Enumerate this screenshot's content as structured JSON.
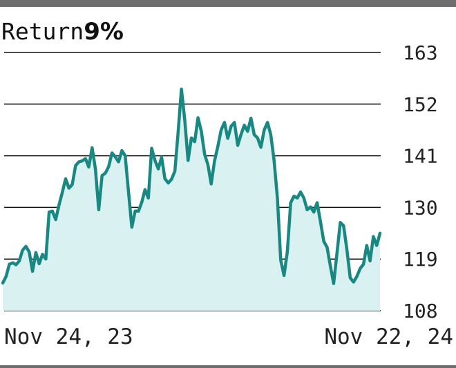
{
  "header": {
    "label": "Return",
    "value": "9%"
  },
  "colors": {
    "line": "#1a8882",
    "fill": "#daf1f1",
    "grid": "#111111",
    "frame": "#6e6e6e"
  },
  "chart_data": {
    "type": "area",
    "title": "Return 9%",
    "xlabel": "",
    "ylabel": "",
    "x_range": [
      "Nov 24, 23",
      "Nov 22, 24"
    ],
    "x_tick_labels": [
      "Nov 24, 23",
      "Nov 22, 24"
    ],
    "y_ticks": [
      108,
      119,
      130,
      141,
      152,
      163
    ],
    "y_tick_labels": [
      "108",
      "119",
      "130",
      "141",
      "152",
      "163"
    ],
    "ylim": [
      108,
      163
    ],
    "y_axis_side": "right",
    "grid": true,
    "series": [
      {
        "values": [
          113.9,
          115.3,
          117.9,
          118.2,
          117.8,
          118.6,
          120.9,
          121.7,
          120.5,
          116.4,
          120.4,
          118.0,
          120.0,
          119.0,
          129.0,
          129.2,
          127.4,
          130.5,
          133.2,
          136.1,
          134.1,
          134.9,
          138.9,
          139.7,
          139.9,
          140.4,
          138.6,
          142.7,
          138.2,
          129.5,
          136.8,
          137.3,
          138.7,
          141.6,
          140.8,
          139.7,
          142.1,
          141.0,
          133.3,
          125.8,
          129.2,
          129.2,
          131.1,
          133.8,
          132.0,
          142.6,
          140.0,
          138.2,
          140.7,
          136.1,
          135.2,
          136.0,
          137.7,
          146.0,
          155.2,
          148.6,
          140.0,
          144.8,
          144.0,
          149.1,
          146.2,
          141.3,
          139.1,
          135.0,
          139.9,
          143.0,
          146.5,
          148.1,
          144.7,
          147.3,
          148.1,
          143.2,
          145.5,
          147.5,
          146.2,
          149.0,
          145.5,
          144.8,
          142.8,
          146.5,
          148.1,
          145.5,
          140.0,
          132.0,
          118.8,
          115.5,
          120.6,
          131.0,
          132.4,
          132.0,
          133.3,
          132.0,
          129.5,
          130.1,
          129.0,
          131.0,
          127.0,
          122.8,
          121.5,
          117.5,
          113.8,
          120.2,
          126.8,
          126.1,
          121.0,
          115.0,
          114.1,
          115.3,
          117.0,
          117.9,
          121.9,
          118.6,
          123.8,
          121.9,
          124.5
        ]
      }
    ]
  }
}
